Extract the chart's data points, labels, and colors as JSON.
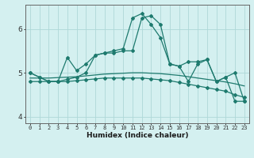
{
  "xlabel": "Humidex (Indice chaleur)",
  "x": [
    0,
    1,
    2,
    3,
    4,
    5,
    6,
    7,
    8,
    9,
    10,
    11,
    12,
    13,
    14,
    15,
    16,
    17,
    18,
    19,
    20,
    21,
    22,
    23
  ],
  "line1": [
    5.0,
    4.9,
    4.8,
    4.8,
    5.35,
    5.05,
    5.2,
    5.4,
    5.45,
    5.45,
    5.5,
    5.5,
    6.25,
    6.3,
    6.1,
    5.2,
    5.15,
    5.25,
    5.25,
    5.3,
    4.8,
    4.9,
    4.35,
    4.35
  ],
  "line2": [
    4.8,
    4.8,
    4.8,
    4.8,
    4.8,
    4.82,
    4.84,
    4.86,
    4.88,
    4.88,
    4.88,
    4.88,
    4.88,
    4.86,
    4.84,
    4.82,
    4.78,
    4.74,
    4.7,
    4.66,
    4.62,
    4.58,
    4.5,
    4.44
  ],
  "line3": [
    5.0,
    4.9,
    4.8,
    4.8,
    4.85,
    4.9,
    5.0,
    5.4,
    5.45,
    5.5,
    5.55,
    6.25,
    6.35,
    6.1,
    5.8,
    5.2,
    5.15,
    4.8,
    5.2,
    5.3,
    4.8,
    4.9,
    5.0,
    4.35
  ],
  "line4": [
    4.88,
    4.88,
    4.88,
    4.89,
    4.9,
    4.91,
    4.93,
    4.95,
    4.97,
    4.98,
    4.99,
    5.0,
    5.0,
    4.99,
    4.98,
    4.96,
    4.94,
    4.91,
    4.88,
    4.85,
    4.82,
    4.79,
    4.75,
    4.7
  ],
  "bg_color": "#d4f0f0",
  "line_color": "#1e7a6e",
  "grid_color": "#aed8d8",
  "ylim": [
    3.85,
    6.55
  ],
  "yticks": [
    4,
    5,
    6
  ],
  "figsize": [
    3.2,
    2.0
  ],
  "dpi": 100
}
